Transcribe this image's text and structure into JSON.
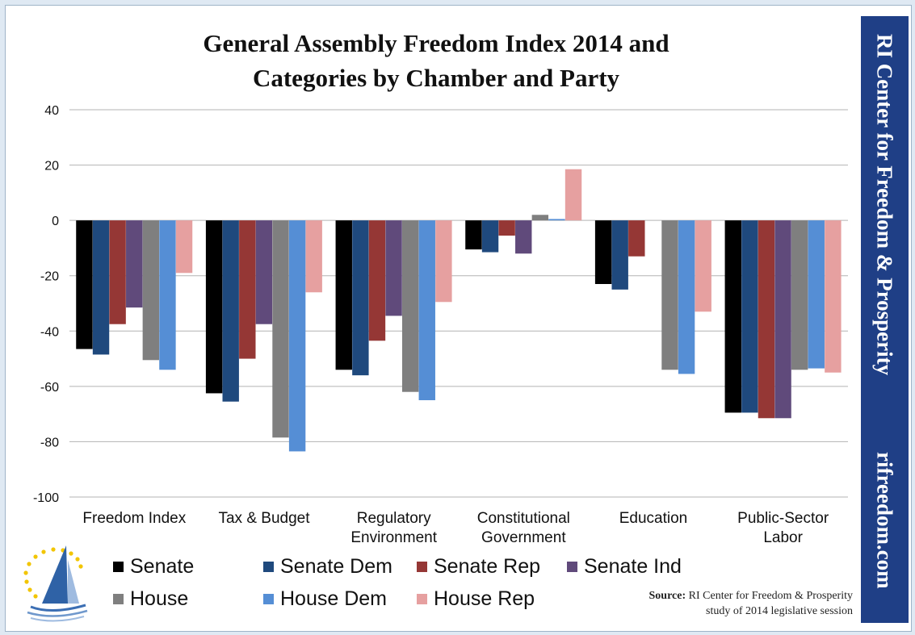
{
  "title_line1": "General Assembly Freedom Index 2014 and",
  "title_line2": "Categories by Chamber and Party",
  "sidebar": {
    "org": "RI Center for Freedom & Prosperity",
    "url": "rifreedom.com",
    "color": "#1f3f86"
  },
  "source": {
    "label": "Source:",
    "line1": "RI Center for Freedom & Prosperity",
    "line2": "study of 2014 legislative session"
  },
  "chart_data": {
    "type": "bar",
    "title": "General Assembly Freedom Index 2014 and Categories by Chamber and Party",
    "ylim": [
      -100,
      40
    ],
    "yticks": [
      40,
      20,
      0,
      -20,
      -40,
      -60,
      -80,
      -100
    ],
    "grid": true,
    "legend_position": "bottom",
    "categories": [
      [
        "Freedom Index"
      ],
      [
        "Tax & Budget"
      ],
      [
        "Regulatory",
        "Environment"
      ],
      [
        "Constitutional",
        "Government"
      ],
      [
        "Education"
      ],
      [
        "Public-Sector",
        "Labor"
      ]
    ],
    "series": [
      {
        "name": "Senate",
        "color": "#000000",
        "values": [
          -46.5,
          -62.5,
          -54,
          -10.5,
          -23,
          -69.5
        ]
      },
      {
        "name": "Senate Dem",
        "color": "#1f497d",
        "values": [
          -48.5,
          -65.5,
          -56,
          -11.5,
          -25,
          -69.5
        ]
      },
      {
        "name": "Senate Rep",
        "color": "#953735",
        "values": [
          -37.5,
          -50,
          -43.5,
          -5.5,
          -13,
          -71.5
        ]
      },
      {
        "name": "Senate Ind",
        "color": "#604a7b",
        "values": [
          -31.5,
          -37.5,
          -34.5,
          -12,
          0,
          -71.5
        ]
      },
      {
        "name": "House",
        "color": "#7f7f7f",
        "values": [
          -50.5,
          -78.5,
          -62,
          2,
          -54,
          -54
        ]
      },
      {
        "name": "House Dem",
        "color": "#558ed5",
        "values": [
          -54,
          -83.5,
          -65,
          0.5,
          -55.5,
          -53.5
        ]
      },
      {
        "name": "House Rep",
        "color": "#e6a0a0",
        "values": [
          -19,
          -26,
          -29.5,
          18.5,
          -33,
          -55
        ]
      }
    ]
  }
}
